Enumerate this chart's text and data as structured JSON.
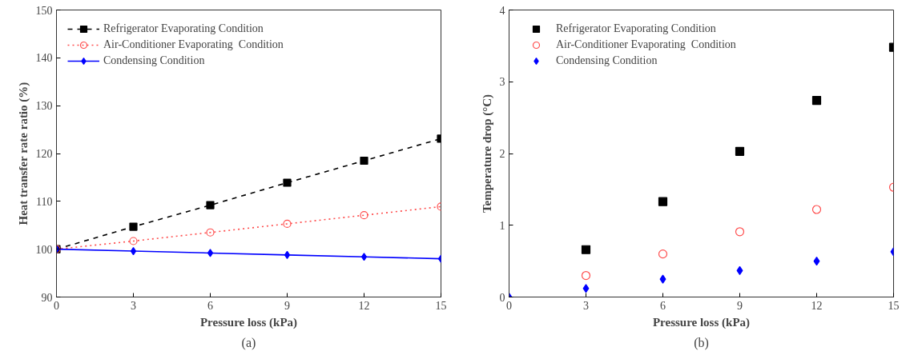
{
  "chart_data": [
    {
      "type": "line",
      "xlabel": "Pressure loss (kPa)",
      "ylabel": "Heat transfer rate ratio (%)",
      "x": [
        0,
        3,
        6,
        9,
        12,
        15
      ],
      "xlim": [
        0,
        15
      ],
      "xticks": [
        0,
        3,
        6,
        9,
        12,
        15
      ],
      "ylim": [
        90,
        150
      ],
      "yticks": [
        90,
        100,
        110,
        120,
        130,
        140,
        150
      ],
      "grid": false,
      "legend": "top left",
      "annotations": [
        "(a)"
      ],
      "series": [
        {
          "name": "Refrigerator Evaporating Condition",
          "color": "#000000",
          "marker": "square",
          "line_style": "dashed",
          "values": [
            100,
            104.7,
            109.2,
            113.9,
            118.5,
            123.1
          ]
        },
        {
          "name": "Air-Conditioner Evaporating  Condition",
          "color": "#ff4d4d",
          "marker": "circle",
          "line_style": "dotted",
          "values": [
            100,
            101.7,
            103.5,
            105.3,
            107.1,
            108.9
          ]
        },
        {
          "name": "Condensing Condition",
          "color": "#0000ff",
          "marker": "diamond",
          "line_style": "solid",
          "values": [
            100,
            99.6,
            99.2,
            98.8,
            98.4,
            98.0
          ]
        }
      ]
    },
    {
      "type": "scatter",
      "xlabel": "Pressure loss (kPa)",
      "ylabel": "Temperature drop (°C)",
      "x": [
        0,
        3,
        6,
        9,
        12,
        15
      ],
      "xlim": [
        0,
        15
      ],
      "xticks": [
        0,
        3,
        6,
        9,
        12,
        15
      ],
      "ylim": [
        0,
        4
      ],
      "yticks": [
        0,
        1,
        2,
        3,
        4
      ],
      "grid": false,
      "legend": "top left",
      "annotations": [
        "(b)"
      ],
      "series": [
        {
          "name": "Refrigerator Evaporating Condition",
          "color": "#000000",
          "marker": "square",
          "values": [
            null,
            0.66,
            1.33,
            2.03,
            2.74,
            3.48
          ]
        },
        {
          "name": "Air-Conditioner Evaporating  Condition",
          "color": "#ff4d4d",
          "marker": "circle",
          "values": [
            null,
            0.3,
            0.6,
            0.91,
            1.22,
            1.53
          ]
        },
        {
          "name": "Condensing Condition",
          "color": "#0000ff",
          "marker": "diamond",
          "values": [
            0,
            0.12,
            0.25,
            0.37,
            0.5,
            0.63
          ]
        }
      ]
    }
  ]
}
